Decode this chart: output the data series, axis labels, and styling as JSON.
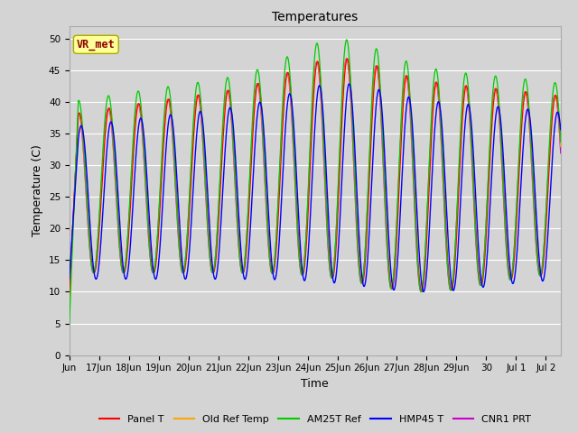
{
  "title": "Temperatures",
  "xlabel": "Time",
  "ylabel": "Temperature (C)",
  "ylim": [
    0,
    52
  ],
  "yticks": [
    0,
    5,
    10,
    15,
    20,
    25,
    30,
    35,
    40,
    45,
    50
  ],
  "fig_bg": "#d4d4d4",
  "plot_bg": "#d4d4d4",
  "grid_color": "#ffffff",
  "annotation_text": "VR_met",
  "annotation_color": "#8b0000",
  "annotation_bg": "#ffff99",
  "annotation_edge": "#aaaa00",
  "series": [
    {
      "label": "Panel T",
      "color": "#ff0000",
      "lw": 0.9
    },
    {
      "label": "Old Ref Temp",
      "color": "#ffa500",
      "lw": 0.9
    },
    {
      "label": "AM25T Ref",
      "color": "#00cc00",
      "lw": 0.9
    },
    {
      "label": "HMP45 T",
      "color": "#0000ff",
      "lw": 1.0
    },
    {
      "label": "CNR1 PRT",
      "color": "#cc00cc",
      "lw": 0.9
    }
  ],
  "xlim": [
    0,
    16.5
  ],
  "tick_positions": [
    0,
    1,
    2,
    3,
    4,
    5,
    6,
    7,
    8,
    9,
    10,
    11,
    12,
    13,
    14,
    15,
    16
  ],
  "tick_labels": [
    "Jun",
    "17Jun",
    "18Jun",
    "19Jun",
    "20Jun",
    "21Jun",
    "22Jun",
    "23Jun",
    "24Jun",
    "25Jun",
    "26Jun",
    "27Jun",
    "28Jun",
    "29Jun",
    "30",
    "Jul 1",
    "Jul 2"
  ]
}
